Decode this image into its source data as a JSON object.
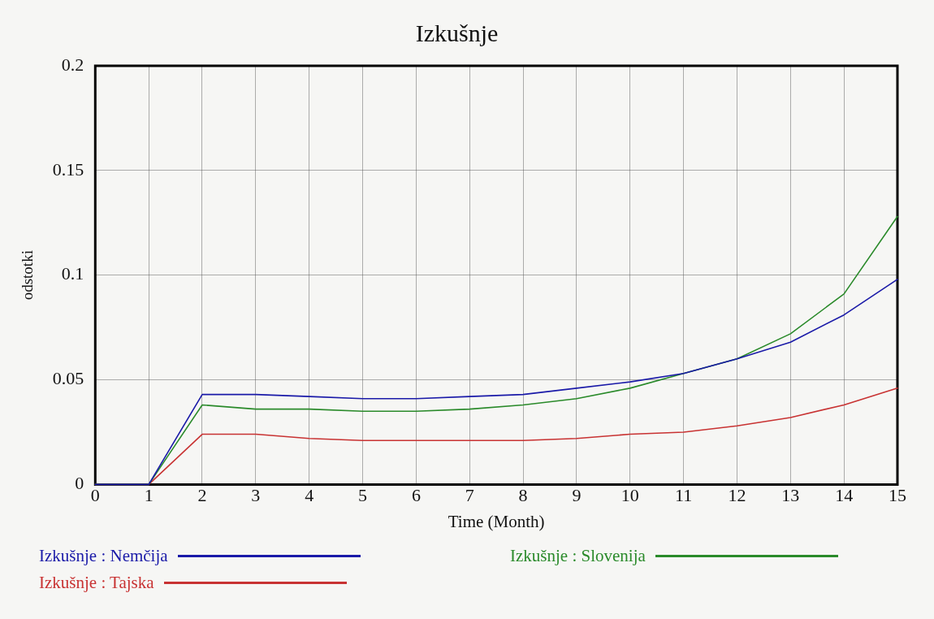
{
  "chart_data": {
    "type": "line",
    "title": "Izkušnje",
    "xlabel": "Time (Month)",
    "ylabel": "odstotki",
    "x": [
      0,
      1,
      2,
      3,
      4,
      5,
      6,
      7,
      8,
      9,
      10,
      11,
      12,
      13,
      14,
      15
    ],
    "xlim": [
      0,
      15
    ],
    "xticks": [
      0,
      1,
      2,
      3,
      4,
      5,
      6,
      7,
      8,
      9,
      10,
      11,
      12,
      13,
      14,
      15
    ],
    "ylim": [
      0,
      0.2
    ],
    "yticks": [
      0,
      0.05,
      0.1,
      0.15,
      0.2
    ],
    "grid": true,
    "legend": "bottom",
    "marker": "none",
    "line_style": "solid",
    "series": [
      {
        "name": "Izkušnje : Nemčija",
        "color": "#1a1aa8",
        "values": [
          0,
          0,
          0.043,
          0.043,
          0.042,
          0.041,
          0.041,
          0.042,
          0.043,
          0.046,
          0.049,
          0.053,
          0.06,
          0.068,
          0.081,
          0.098
        ]
      },
      {
        "name": "Izkušnje : Slovenija",
        "color": "#2a8a2a",
        "values": [
          0,
          0,
          0.038,
          0.036,
          0.036,
          0.035,
          0.035,
          0.036,
          0.038,
          0.041,
          0.046,
          0.053,
          0.06,
          0.072,
          0.091,
          0.128
        ]
      },
      {
        "name": "Izkušnje : Tajska",
        "color": "#c83232",
        "values": [
          0,
          0,
          0.024,
          0.024,
          0.022,
          0.021,
          0.021,
          0.021,
          0.021,
          0.022,
          0.024,
          0.025,
          0.028,
          0.032,
          0.038,
          0.046
        ]
      }
    ]
  }
}
